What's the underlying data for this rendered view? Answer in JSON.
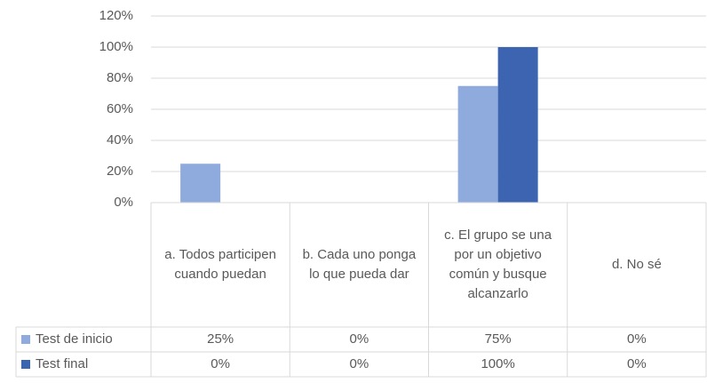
{
  "chart_data": {
    "type": "bar",
    "categories": [
      "a.    Todos participen cuando puedan",
      "b.    Cada uno ponga lo que pueda dar",
      "c.    El grupo se una por un objetivo común y busque alcanzarlo",
      "d. No sé"
    ],
    "series": [
      {
        "name": "Test de inicio",
        "color": "#8faadc",
        "values": [
          25,
          0,
          75,
          0
        ],
        "value_labels": [
          "25%",
          "0%",
          "75%",
          "0%"
        ]
      },
      {
        "name": "Test final",
        "color": "#3d64b0",
        "values": [
          0,
          0,
          100,
          0
        ],
        "value_labels": [
          "0%",
          "0%",
          "100%",
          "0%"
        ]
      }
    ],
    "ylim": [
      0,
      120
    ],
    "yticks": [
      {
        "value": 0,
        "label": "0%"
      },
      {
        "value": 20,
        "label": "20%"
      },
      {
        "value": 40,
        "label": "40%"
      },
      {
        "value": 60,
        "label": "60%"
      },
      {
        "value": 80,
        "label": "80%"
      },
      {
        "value": 100,
        "label": "100%"
      },
      {
        "value": 120,
        "label": "120%"
      }
    ],
    "grid": true,
    "data_table": true
  }
}
